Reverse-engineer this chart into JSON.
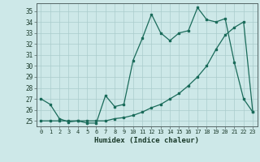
{
  "xlabel": "Humidex (Indice chaleur)",
  "background_color": "#cde8e8",
  "line_color": "#1a6b5a",
  "grid_color": "#b8d8d8",
  "xlim": [
    -0.5,
    23.5
  ],
  "ylim": [
    24.5,
    35.7
  ],
  "yticks": [
    25,
    26,
    27,
    28,
    29,
    30,
    31,
    32,
    33,
    34,
    35
  ],
  "xticks": [
    0,
    1,
    2,
    3,
    4,
    5,
    6,
    7,
    8,
    9,
    10,
    11,
    12,
    13,
    14,
    15,
    16,
    17,
    18,
    19,
    20,
    21,
    22,
    23
  ],
  "series1_x": [
    0,
    1,
    2,
    3,
    4,
    5,
    6,
    7,
    8,
    9,
    10,
    11,
    12,
    13,
    14,
    15,
    16,
    17,
    18,
    19,
    20,
    21,
    22,
    23
  ],
  "series1_y": [
    27.0,
    26.5,
    25.2,
    24.9,
    25.0,
    24.8,
    24.8,
    27.3,
    26.3,
    26.5,
    30.5,
    32.5,
    34.7,
    33.0,
    32.3,
    33.0,
    33.2,
    35.3,
    34.2,
    34.0,
    34.3,
    30.3,
    27.0,
    25.8
  ],
  "series2_x": [
    0,
    1,
    2,
    3,
    4,
    5,
    6,
    7,
    8,
    9,
    10,
    11,
    12,
    13,
    14,
    15,
    16,
    17,
    18,
    19,
    20,
    21,
    22,
    23
  ],
  "series2_y": [
    25.0,
    25.0,
    25.0,
    25.0,
    25.0,
    25.0,
    25.0,
    25.0,
    25.2,
    25.3,
    25.5,
    25.8,
    26.2,
    26.5,
    27.0,
    27.5,
    28.2,
    29.0,
    30.0,
    31.5,
    32.8,
    33.5,
    34.0,
    25.8
  ]
}
